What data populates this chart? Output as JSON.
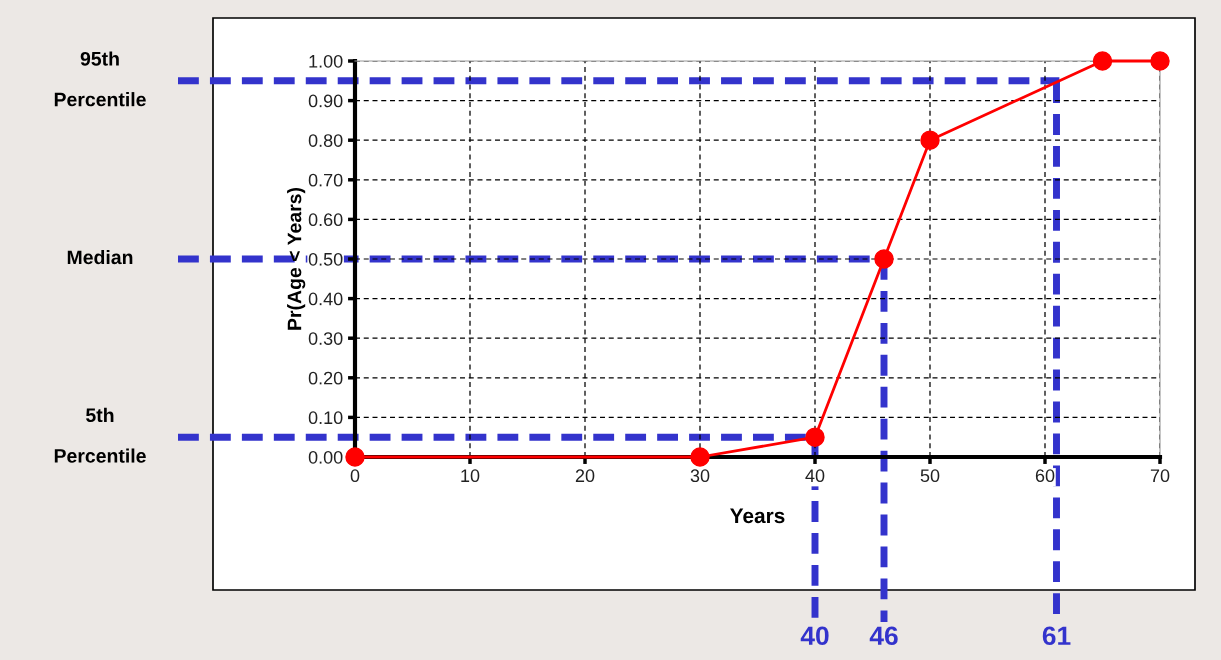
{
  "chart_data": {
    "type": "line",
    "xlabel": "Years",
    "ylabel": "Pr(Age < Years)",
    "x": [
      0,
      30,
      40,
      46,
      50,
      65,
      70
    ],
    "series": [
      {
        "color": "#ff0000",
        "values": [
          0,
          0,
          0.05,
          0.5,
          0.8,
          1.0,
          1.0
        ]
      }
    ],
    "marker": "circle",
    "line_style": "solid",
    "xlim": [
      0,
      70
    ],
    "xticks": [
      0,
      10,
      20,
      30,
      40,
      50,
      60,
      70
    ],
    "ylim": [
      0,
      1.0
    ],
    "yticks": [
      {
        "value": 0,
        "label": "0.00"
      },
      {
        "value": 0.1,
        "label": "0.10"
      },
      {
        "value": 0.2,
        "label": "0.20"
      },
      {
        "value": 0.3,
        "label": "0.30"
      },
      {
        "value": 0.4,
        "label": "0.40"
      },
      {
        "value": 0.5,
        "label": "0.50"
      },
      {
        "value": 0.6,
        "label": "0.60"
      },
      {
        "value": 0.7,
        "label": "0.70"
      },
      {
        "value": 0.8,
        "label": "0.80"
      },
      {
        "value": 0.9,
        "label": "0.90"
      },
      {
        "value": 1.0,
        "label": "1.00"
      }
    ],
    "grid": true,
    "legend": false,
    "ref_lines": [
      {
        "axis": "y",
        "value": 0.95,
        "label": "95th\nPercentile",
        "color": "#3333cc",
        "line_style": "dashed"
      },
      {
        "axis": "y",
        "value": 0.5,
        "label": "Median",
        "color": "#3333cc",
        "line_style": "dashed"
      },
      {
        "axis": "y",
        "value": 0.05,
        "label": "5th\nPercentile",
        "color": "#3333cc",
        "line_style": "dashed"
      },
      {
        "axis": "x",
        "value": 40,
        "label": "40",
        "color": "#3333cc",
        "line_style": "dashed"
      },
      {
        "axis": "x",
        "value": 46,
        "label": "46",
        "color": "#3333cc",
        "line_style": "dashed"
      },
      {
        "axis": "x",
        "value": 61,
        "label": "61",
        "color": "#3333cc",
        "line_style": "dashed"
      }
    ]
  }
}
